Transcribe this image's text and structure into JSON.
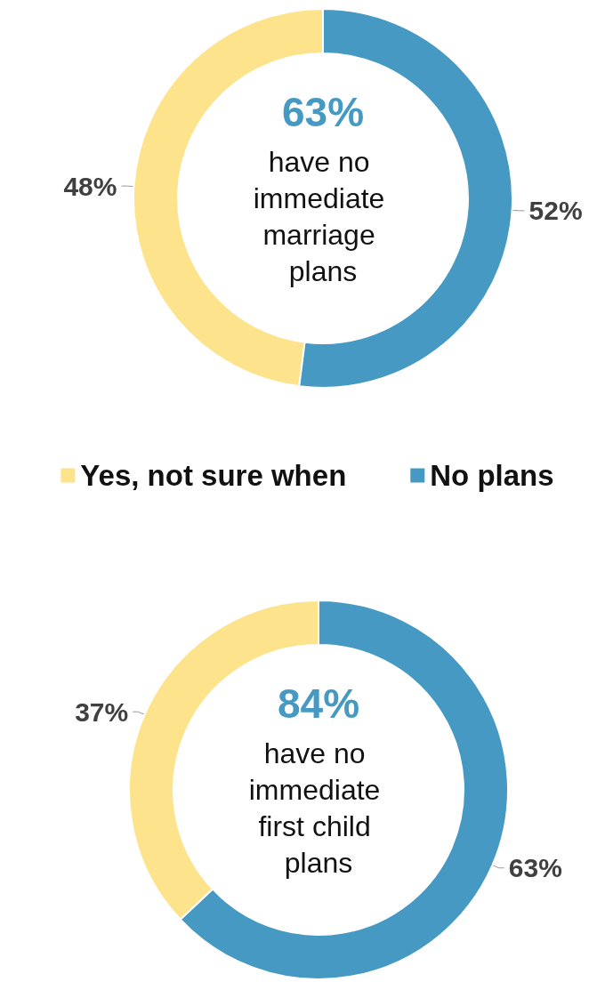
{
  "chart_data": [
    {
      "type": "donut",
      "categories": [
        "Yes, not sure when",
        "No plans"
      ],
      "values": [
        48,
        52
      ],
      "colors": [
        "#fde38b",
        "#4599c2"
      ],
      "value_labels": [
        "48%",
        "52%"
      ],
      "annotations": [
        "63%",
        "have no immediate marriage plans"
      ],
      "legend": "bottom"
    },
    {
      "type": "donut",
      "categories": [
        null,
        null
      ],
      "values": [
        37,
        63
      ],
      "colors": [
        "#fde38b",
        "#4599c2"
      ],
      "value_labels": [
        "37%",
        "63%"
      ],
      "annotations": [
        "84%",
        "have no immediate first child plans"
      ]
    }
  ]
}
